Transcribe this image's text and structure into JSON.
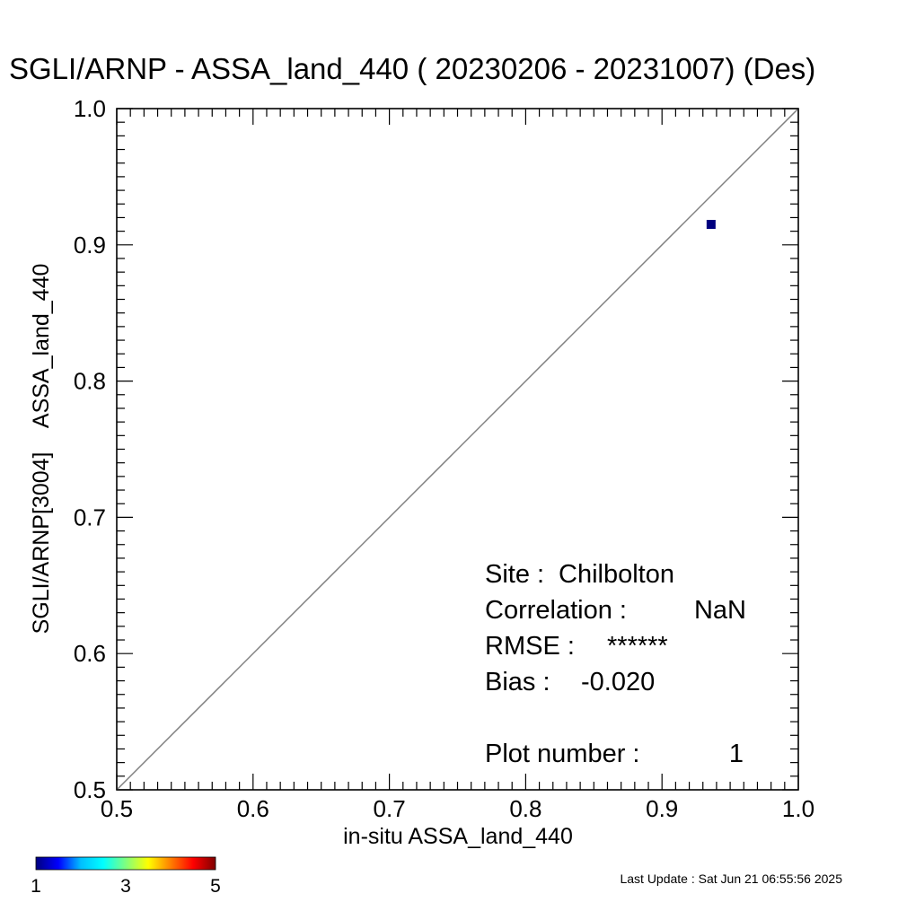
{
  "chart_data": {
    "type": "scatter",
    "title": "SGLI/ARNP - ASSA_land_440 ( 20230206 - 20231007) (Des)",
    "xlabel": "in-situ ASSA_land_440",
    "ylabel": "SGLI/ARNP[3004]    ASSA_land_440",
    "xlim": [
      0.5,
      1.0
    ],
    "ylim": [
      0.5,
      1.0
    ],
    "x_ticks": [
      "0.5",
      "0.6",
      "0.7",
      "0.8",
      "0.9",
      "1.0"
    ],
    "y_ticks": [
      "0.5",
      "0.6",
      "0.7",
      "0.8",
      "0.9",
      "1.0"
    ],
    "grid": false,
    "reference_line": "1:1",
    "reference_line_color": "#808080",
    "points": [
      {
        "x": 0.936,
        "y": 0.915,
        "count": 1,
        "color": "#00007f"
      }
    ],
    "stats": {
      "site_label": "Site :",
      "site_value": "Chilbolton",
      "correlation_label": "Correlation :",
      "correlation_value": "NaN",
      "rmse_label": "RMSE :",
      "rmse_value": "******",
      "bias_label": "Bias :",
      "bias_value": "-0.020",
      "plot_number_label": "Plot number :",
      "plot_number_value": "1"
    },
    "colorbar": {
      "min_label": "1",
      "mid_label": "3",
      "max_label": "5",
      "colors": [
        "#00007f",
        "#0000ff",
        "#00bfff",
        "#00ffff",
        "#7fff7f",
        "#ffff00",
        "#ff7f00",
        "#ff0000",
        "#7f0000"
      ]
    }
  },
  "footer": {
    "last_update": "Last Update : Sat Jun 21 06:55:56 2025"
  }
}
